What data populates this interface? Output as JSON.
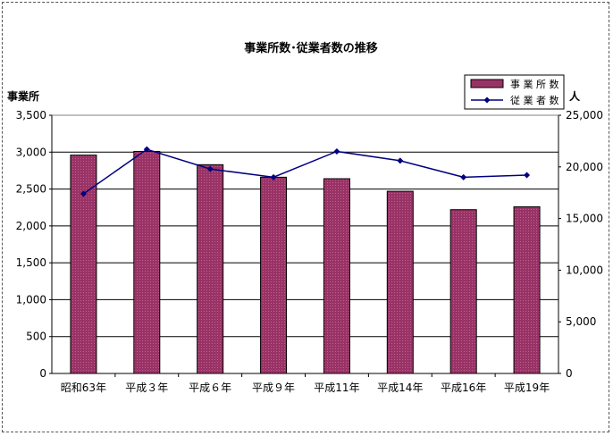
{
  "chart_data": {
    "type": "bar",
    "title": "事業所数･従業者数の推移",
    "categories": [
      "昭和63年",
      "平成３年",
      "平成６年",
      "平成９年",
      "平成11年",
      "平成14年",
      "平成16年",
      "平成19年"
    ],
    "ylabel_left": "事業所",
    "ylabel_right": "人",
    "ylim_left": [
      0,
      3500
    ],
    "ylim_right": [
      0,
      25000
    ],
    "yticks_left": [
      "0",
      "500",
      "1,000",
      "1,500",
      "2,000",
      "2,500",
      "3,000",
      "3,500"
    ],
    "yticks_right": [
      "0",
      "5,000",
      "10,000",
      "15,000",
      "20,000",
      "25,000"
    ],
    "grid": true,
    "legend_position": "top-right",
    "series": [
      {
        "name": "事 業 所 数",
        "type": "bar",
        "axis": "left",
        "color": "#993366",
        "values": [
          2960,
          3010,
          2830,
          2660,
          2640,
          2470,
          2220,
          2260
        ]
      },
      {
        "name": "従 業 者 数",
        "type": "line",
        "axis": "right",
        "color": "#000080",
        "values": [
          17400,
          21700,
          19800,
          19000,
          21500,
          20600,
          19000,
          19200
        ]
      }
    ]
  }
}
